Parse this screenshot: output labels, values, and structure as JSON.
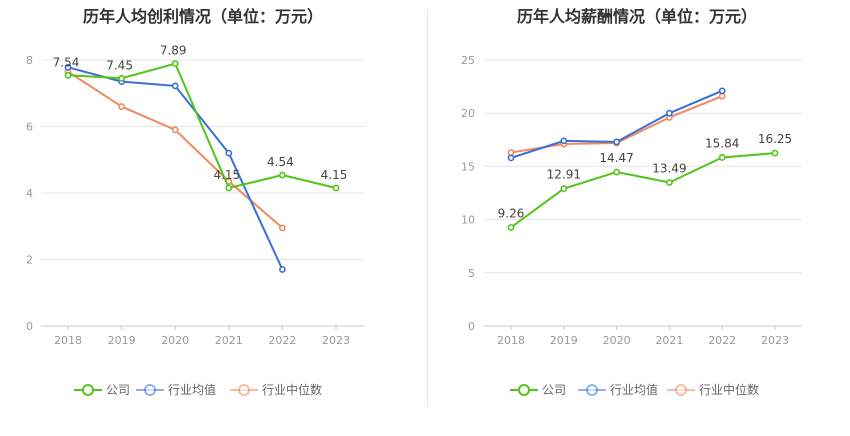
{
  "chart_data": [
    {
      "type": "line",
      "title": "历年人均创利情况（单位：万元）",
      "categories": [
        "2018",
        "2019",
        "2020",
        "2021",
        "2022",
        "2023"
      ],
      "ylim": [
        0,
        8
      ],
      "yticks": [
        0,
        2,
        4,
        6,
        8
      ],
      "grid": true,
      "legend_position": "bottom",
      "series": [
        {
          "name": "公司",
          "color": "#52c41a",
          "values": [
            7.54,
            7.45,
            7.89,
            4.15,
            4.54,
            4.15
          ],
          "labels": [
            "7.54",
            "7.45",
            "7.89",
            "4.15",
            "4.54",
            "4.15"
          ]
        },
        {
          "name": "行业均值",
          "color": "#3a6fd8",
          "values": [
            7.78,
            7.35,
            7.22,
            5.2,
            1.7,
            null
          ]
        },
        {
          "name": "行业中位数",
          "color": "#f08a5d",
          "values": [
            7.65,
            6.6,
            5.9,
            4.35,
            2.95,
            null
          ]
        }
      ]
    },
    {
      "type": "line",
      "title": "历年人均薪酬情况（单位：万元）",
      "categories": [
        "2018",
        "2019",
        "2020",
        "2021",
        "2022",
        "2023"
      ],
      "ylim": [
        0,
        25
      ],
      "yticks": [
        0,
        5,
        10,
        15,
        20,
        25
      ],
      "grid": true,
      "legend_position": "bottom",
      "series": [
        {
          "name": "公司",
          "color": "#52c41a",
          "values": [
            9.26,
            12.91,
            14.47,
            13.49,
            15.84,
            16.25
          ],
          "labels": [
            "9.26",
            "12.91",
            "14.47",
            "13.49",
            "15.84",
            "16.25"
          ]
        },
        {
          "name": "行业均值",
          "color": "#3a6fd8",
          "values": [
            15.8,
            17.4,
            17.3,
            20.0,
            22.1,
            null
          ]
        },
        {
          "name": "行业中位数",
          "color": "#f08a5d",
          "values": [
            16.3,
            17.1,
            17.2,
            19.6,
            21.6,
            null
          ]
        }
      ]
    }
  ]
}
